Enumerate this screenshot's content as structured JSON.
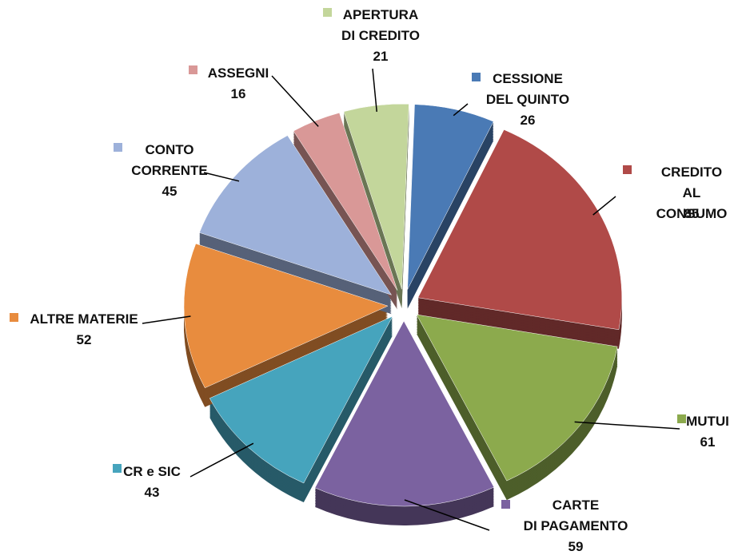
{
  "chart_data": {
    "type": "pie",
    "categories": [
      "CESSIONE\nDEL QUINTO",
      "CREDITO\nAL CONSUMO",
      "MUTUI",
      "CARTE\nDI PAGAMENTO",
      "CR e SIC",
      "ALTRE MATERIE",
      "CONTO\nCORRENTE",
      "ASSEGNI",
      "APERTURA\nDI CREDITO"
    ],
    "values": [
      26,
      85,
      61,
      59,
      43,
      52,
      45,
      16,
      21
    ],
    "colors": [
      "#4a7ab5",
      "#b04a48",
      "#8caa4d",
      "#7b62a0",
      "#46a4bd",
      "#e88c3e",
      "#9db1da",
      "#d99897",
      "#c3d69b"
    ],
    "legend": "labels"
  }
}
